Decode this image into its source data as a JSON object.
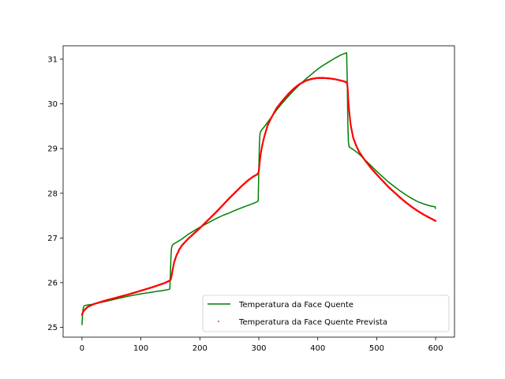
{
  "chart_data": {
    "type": "line",
    "title": "",
    "xlabel": "",
    "ylabel": "",
    "xlim": [
      -32,
      632
    ],
    "ylim": [
      24.78,
      31.3
    ],
    "xticks": [
      0,
      100,
      200,
      300,
      400,
      500,
      600
    ],
    "yticks": [
      25,
      26,
      27,
      28,
      29,
      30,
      31
    ],
    "grid": false,
    "legend_position": "lower-right",
    "series": [
      {
        "name": "Temperatura da Face Quente",
        "style": "line",
        "color": "#008000",
        "x": [
          0,
          1,
          2,
          3,
          5,
          10,
          20,
          40,
          60,
          80,
          100,
          120,
          140,
          148,
          149,
          150,
          151,
          152,
          153,
          155,
          160,
          170,
          180,
          190,
          200,
          210,
          220,
          230,
          240,
          250,
          260,
          270,
          280,
          290,
          297,
          298,
          299,
          300,
          301,
          302,
          303,
          305,
          310,
          320,
          330,
          340,
          350,
          360,
          370,
          380,
          390,
          400,
          410,
          420,
          430,
          440,
          448,
          449,
          450,
          451,
          452,
          453,
          455,
          460,
          470,
          480,
          490,
          500,
          510,
          520,
          530,
          540,
          550,
          560,
          570,
          580,
          590,
          598,
          599,
          600
        ],
        "y": [
          25.05,
          25.3,
          25.42,
          25.47,
          25.49,
          25.5,
          25.52,
          25.58,
          25.64,
          25.7,
          25.75,
          25.79,
          25.83,
          25.85,
          25.86,
          26.2,
          26.6,
          26.78,
          26.83,
          26.86,
          26.9,
          26.98,
          27.08,
          27.16,
          27.24,
          27.31,
          27.38,
          27.45,
          27.51,
          27.56,
          27.62,
          27.67,
          27.72,
          27.77,
          27.81,
          27.82,
          27.83,
          28.55,
          29.1,
          29.33,
          29.38,
          29.42,
          29.5,
          29.68,
          29.86,
          30.02,
          30.17,
          30.31,
          30.44,
          30.56,
          30.67,
          30.78,
          30.87,
          30.95,
          31.03,
          31.1,
          31.14,
          31.14,
          30.55,
          29.6,
          29.15,
          29.05,
          29.02,
          28.98,
          28.88,
          28.75,
          28.62,
          28.49,
          28.37,
          28.25,
          28.15,
          28.05,
          27.96,
          27.88,
          27.81,
          27.76,
          27.72,
          27.7,
          27.7,
          27.65
        ]
      },
      {
        "name": "Temperatura da Face Quente Prevista",
        "style": "points",
        "color": "#ff0000",
        "x": [
          0,
          2,
          5,
          10,
          20,
          40,
          60,
          80,
          100,
          120,
          140,
          148,
          150,
          151,
          152,
          154,
          156,
          160,
          165,
          170,
          180,
          190,
          200,
          210,
          220,
          230,
          240,
          250,
          260,
          270,
          280,
          290,
          297,
          299,
          300,
          301,
          302,
          303,
          305,
          308,
          310,
          315,
          320,
          330,
          340,
          350,
          360,
          370,
          380,
          390,
          400,
          410,
          420,
          430,
          440,
          448,
          450,
          451,
          452,
          454,
          456,
          460,
          465,
          470,
          480,
          490,
          500,
          510,
          520,
          530,
          540,
          550,
          560,
          570,
          580,
          590,
          600
        ],
        "y": [
          25.28,
          25.35,
          25.4,
          25.46,
          25.52,
          25.6,
          25.67,
          25.74,
          25.82,
          25.9,
          25.99,
          26.04,
          26.06,
          26.09,
          26.15,
          26.3,
          26.44,
          26.6,
          26.74,
          26.84,
          26.98,
          27.1,
          27.22,
          27.35,
          27.48,
          27.61,
          27.75,
          27.89,
          28.02,
          28.15,
          28.27,
          28.37,
          28.42,
          28.45,
          28.5,
          28.62,
          28.75,
          28.86,
          29.02,
          29.2,
          29.3,
          29.52,
          29.66,
          29.9,
          30.07,
          30.22,
          30.35,
          30.45,
          30.52,
          30.56,
          30.58,
          30.58,
          30.57,
          30.55,
          30.52,
          30.49,
          30.45,
          30.3,
          30.05,
          29.75,
          29.52,
          29.25,
          29.07,
          28.93,
          28.74,
          28.57,
          28.42,
          28.28,
          28.14,
          28.02,
          27.9,
          27.79,
          27.69,
          27.6,
          27.52,
          27.45,
          27.38
        ]
      }
    ]
  }
}
